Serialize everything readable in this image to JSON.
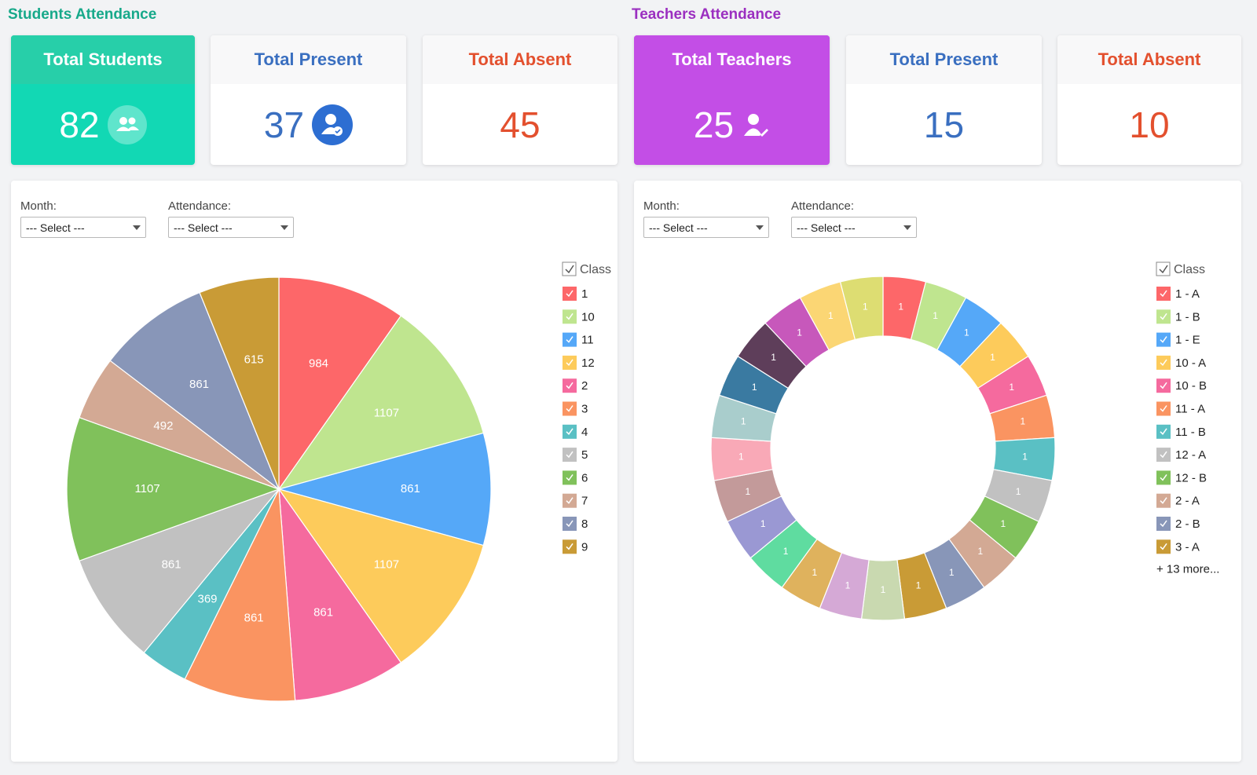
{
  "students": {
    "title": "Students Attendance",
    "cards": [
      {
        "label": "Total Students",
        "value": 82
      },
      {
        "label": "Total Present",
        "value": 37
      },
      {
        "label": "Total Absent",
        "value": 45
      }
    ],
    "filters": [
      {
        "label": "Month:",
        "placeholder": "--- Select ---"
      },
      {
        "label": "Attendance:",
        "placeholder": "--- Select ---"
      }
    ]
  },
  "teachers": {
    "title": "Teachers Attendance",
    "cards": [
      {
        "label": "Total Teachers",
        "value": 25
      },
      {
        "label": "Total Present",
        "value": 15
      },
      {
        "label": "Total Absent",
        "value": 10
      }
    ],
    "filters": [
      {
        "label": "Month:",
        "placeholder": "--- Select ---"
      },
      {
        "label": "Attendance:",
        "placeholder": "--- Select ---"
      }
    ]
  },
  "chart_data": [
    {
      "type": "pie",
      "legend_title": "Class",
      "categories": [
        "1",
        "10",
        "11",
        "12",
        "2",
        "3",
        "4",
        "5",
        "6",
        "7",
        "8",
        "9"
      ],
      "values": [
        984,
        1107,
        861,
        1107,
        861,
        861,
        369,
        861,
        1107,
        492,
        861,
        615
      ],
      "colors": [
        "#fd6769",
        "#bfe58f",
        "#55a8f8",
        "#fdcb5b",
        "#f56a9e",
        "#fa9461",
        "#5ac0c4",
        "#c1c1c1",
        "#80c15b",
        "#d3a994",
        "#8896b8",
        "#c99b36"
      ]
    },
    {
      "type": "donut",
      "legend_title": "Class",
      "legend_more": "+ 13 more...",
      "categories": [
        "1 - A",
        "1 - B",
        "1 - E",
        "10 - A",
        "10 - B",
        "11 - A",
        "11 - B",
        "12 - A",
        "12 - B",
        "2 - A",
        "2 - B",
        "3 - A",
        null,
        null,
        null,
        null,
        null,
        null,
        null,
        null,
        null,
        null,
        null,
        null,
        null
      ],
      "values": [
        1,
        1,
        1,
        1,
        1,
        1,
        1,
        1,
        1,
        1,
        1,
        1,
        1,
        1,
        1,
        1,
        1,
        1,
        1,
        1,
        1,
        1,
        1,
        1,
        1
      ],
      "colors": [
        "#fd6769",
        "#bfe58f",
        "#55a8f8",
        "#fdcb5b",
        "#f56a9e",
        "#fa9461",
        "#5ac0c4",
        "#c1c1c1",
        "#80c15b",
        "#d3a994",
        "#8896b8",
        "#c99b36",
        "#c9d9b0",
        "#d5a9d6",
        "#dfb25d",
        "#5fdca0",
        "#9a98d3",
        "#c39a9a",
        "#f9a9b7",
        "#a9cdcc",
        "#3a7aa1",
        "#5e3e5a",
        "#c758bb",
        "#fbd674",
        "#dddd72"
      ]
    }
  ]
}
